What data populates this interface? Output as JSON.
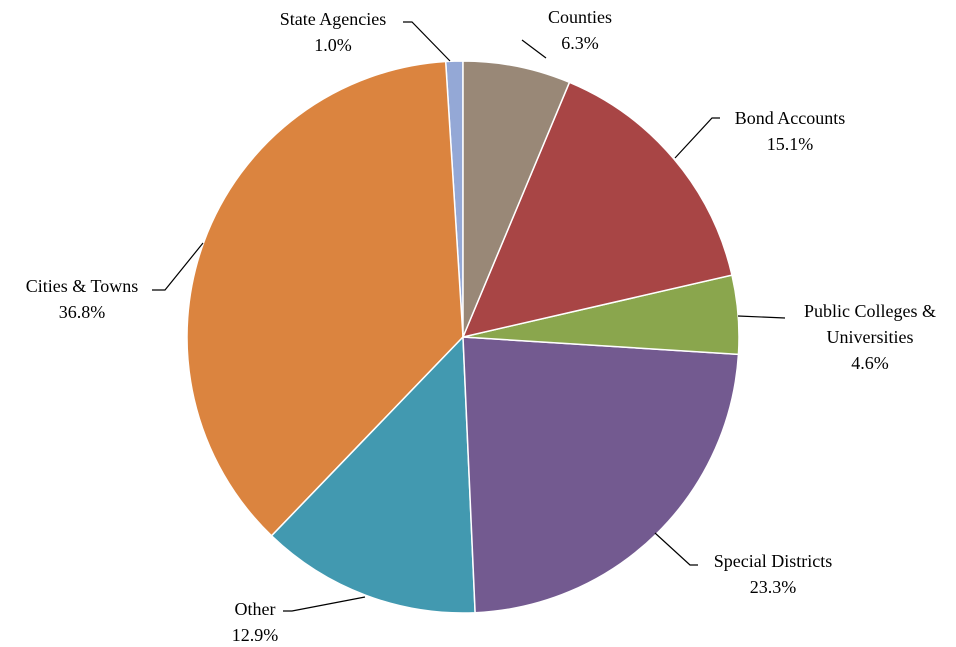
{
  "chart_data": {
    "type": "pie",
    "categories": [
      "Counties",
      "Bond Accounts",
      "Public Colleges & Universities",
      "Special Districts",
      "Other",
      "Cities & Towns",
      "State Agencies"
    ],
    "values": [
      6.3,
      15.1,
      4.6,
      23.3,
      12.9,
      36.8,
      1.0
    ],
    "value_labels": [
      "6.3%",
      "15.1%",
      "4.6%",
      "23.3%",
      "12.9%",
      "36.8%",
      "1.0%"
    ],
    "colors": [
      "#998877",
      "#a84545",
      "#8aa64d",
      "#735a90",
      "#4299b0",
      "#db843f",
      "#94a8d6"
    ]
  }
}
